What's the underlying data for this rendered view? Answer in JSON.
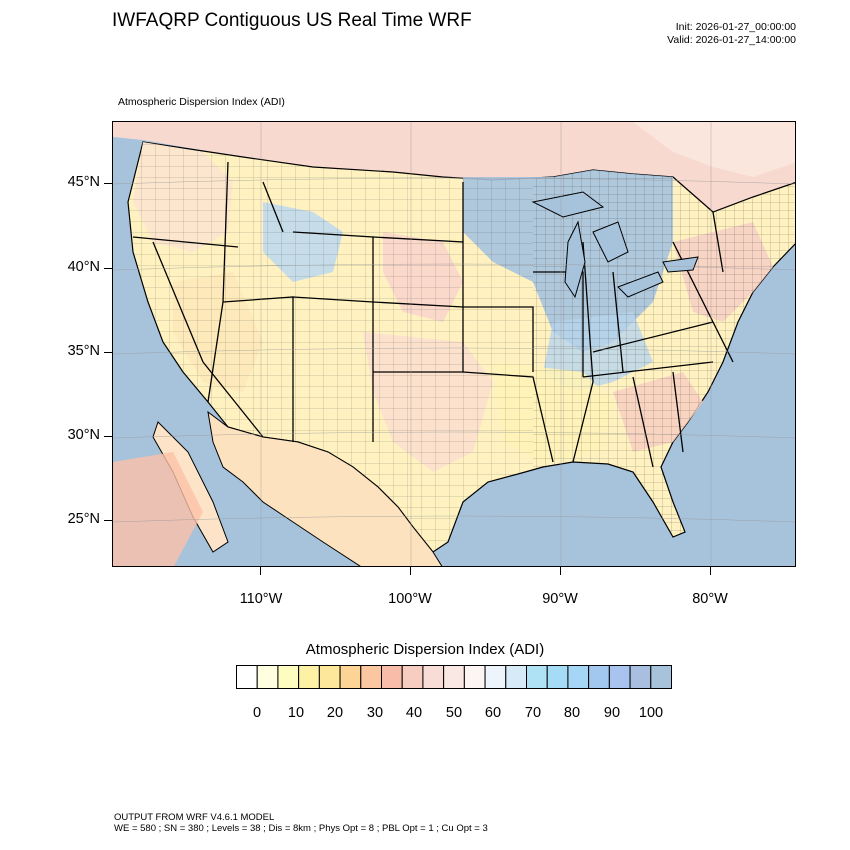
{
  "header": {
    "title": "IWFAQRP Contiguous US Real Time WRF",
    "init": "Init: 2026-01-27_00:00:00",
    "valid": "Valid: 2026-01-27_14:00:00"
  },
  "map": {
    "subtitle": "Atmospheric Dispersion Index   (ADI)",
    "lat_labels": [
      "45°N",
      "40°N",
      "35°N",
      "30°N",
      "25°N"
    ],
    "lon_labels": [
      "110°W",
      "100°W",
      "90°W",
      "80°W"
    ],
    "ocean_color": "#a7c2db",
    "land_color": "#fff6c8"
  },
  "colorbar": {
    "title": "Atmospheric Dispersion Index  (ADI)",
    "labels": [
      "0",
      "10",
      "20",
      "30",
      "40",
      "50",
      "60",
      "70",
      "80",
      "90",
      "100"
    ],
    "colors": [
      "#ffffff",
      "#ffffe0",
      "#fffcc0",
      "#fdf1a6",
      "#fde79a",
      "#fdd495",
      "#fbc6a0",
      "#f9bca8",
      "#f7cdc2",
      "#f8ddd6",
      "#fae8e4",
      "#fdf5f3",
      "#eef4fc",
      "#d6eaf8",
      "#b0e2f6",
      "#a5dcf5",
      "#a5d6f5",
      "#a3c8f0",
      "#a8c3ee",
      "#a8bfe0",
      "#a7c2db"
    ]
  },
  "footer": {
    "line1": "OUTPUT FROM WRF V4.6.1 MODEL",
    "line2": "WE = 580 ; SN = 380 ; Levels = 38 ; Dis = 8km ; Phys Opt = 8 ; PBL Opt = 1 ; Cu Opt = 3"
  }
}
